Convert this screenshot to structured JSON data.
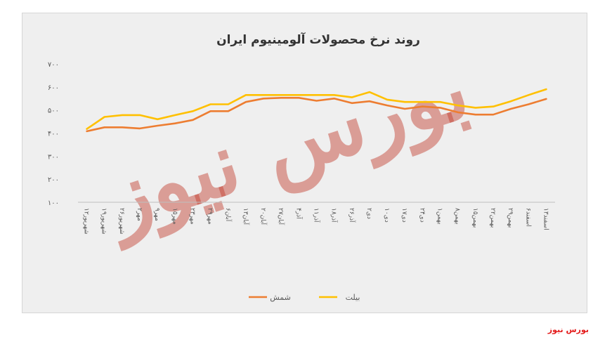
{
  "chart_data": {
    "type": "line",
    "title": "روند نرخ محصولات آلومینیوم ایران",
    "xlabel": "",
    "ylabel": "",
    "ylim": [
      100,
      700
    ],
    "yticks": [
      "۱۰۰",
      "۲۰۰",
      "۳۰۰",
      "۴۰۰",
      "۵۰۰",
      "۶۰۰",
      "۷۰۰"
    ],
    "ytick_values": [
      100,
      200,
      300,
      400,
      500,
      600,
      700
    ],
    "grid": false,
    "legend_position": "bottom",
    "categories": [
      "۱۲شهریور",
      "۱۹شهریور",
      "۲۶شهریور",
      "۲مهر",
      "۹مهر",
      "۱۵مهر",
      "۲۳مهر",
      "۲۹مهر",
      "۶آبان",
      "۱۳آبان",
      "۲۰آبان",
      "۲۷آبان",
      "۴آذر",
      "۱۱آذر",
      "۱۸آذر",
      "۲۶آذر",
      "۲دی",
      "۱۰دی",
      "۱۷دی",
      "۲۴دی",
      "۱بهمن",
      "۸بهمن",
      "۱۵بهمن",
      "۲۲بهمن",
      "۲۹بهمن",
      "۶اسفند",
      "۱۳اسفند"
    ],
    "series": [
      {
        "name": "شمش",
        "color": "#ed7d31",
        "values": [
          408,
          425,
          425,
          420,
          432,
          442,
          457,
          495,
          495,
          535,
          550,
          553,
          553,
          540,
          550,
          530,
          538,
          520,
          505,
          515,
          510,
          490,
          480,
          480,
          505,
          525,
          548
        ]
      },
      {
        "name": "بیلت",
        "color": "#ffc000",
        "values": [
          418,
          470,
          478,
          478,
          460,
          478,
          495,
          525,
          525,
          565,
          565,
          565,
          565,
          565,
          565,
          555,
          578,
          545,
          535,
          535,
          535,
          520,
          510,
          515,
          538,
          565,
          590
        ]
      }
    ]
  },
  "watermark_text": "بورس نیوز",
  "site_credit": "بورس نیوز"
}
